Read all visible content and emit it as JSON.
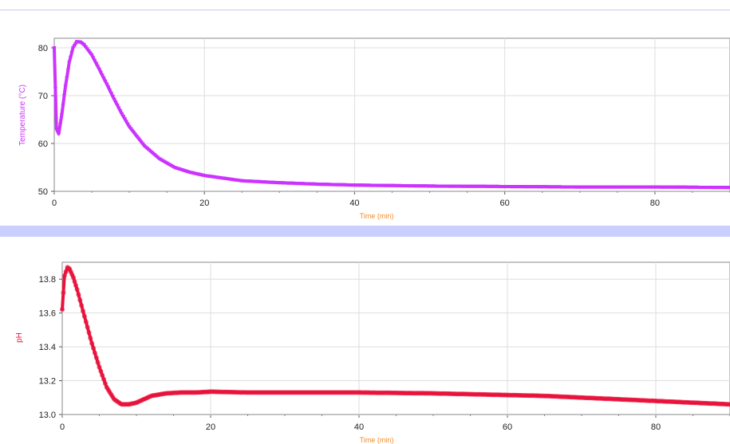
{
  "chart_data": [
    {
      "type": "line",
      "title": "",
      "xlabel": "Time (min)",
      "ylabel": "Temperature (°C)",
      "xlim": [
        0,
        90
      ],
      "ylim": [
        50,
        82
      ],
      "x_ticks": [
        "0",
        "20",
        "40",
        "60",
        "80"
      ],
      "y_ticks": [
        "50",
        "60",
        "70",
        "80"
      ],
      "grid": true,
      "legend": "none",
      "series": [
        {
          "color": "#cc33ff",
          "x": [
            0,
            0.3,
            0.6,
            1,
            1.5,
            2,
            2.5,
            3,
            3.5,
            4,
            5,
            6,
            7,
            8,
            9,
            10,
            12,
            14,
            16,
            18,
            20,
            25,
            30,
            35,
            40,
            50,
            60,
            70,
            80,
            90
          ],
          "y": [
            80,
            63,
            62,
            66,
            72,
            77,
            80,
            81.3,
            81.2,
            80.6,
            78.5,
            75.5,
            72.4,
            69.2,
            66.2,
            63.5,
            59.5,
            56.8,
            55,
            54,
            53.3,
            52.2,
            51.8,
            51.5,
            51.3,
            51.1,
            51,
            50.9,
            50.9,
            50.8
          ]
        }
      ]
    },
    {
      "type": "line",
      "title": "",
      "xlabel": "Time (min)",
      "ylabel": "pH",
      "xlim": [
        0,
        90
      ],
      "ylim": [
        13,
        13.9
      ],
      "x_ticks": [
        "0",
        "20",
        "40",
        "60",
        "80"
      ],
      "y_ticks": [
        "13.0",
        "13.2",
        "13.4",
        "13.6",
        "13.8"
      ],
      "grid": true,
      "legend": "none",
      "series": [
        {
          "color": "#e8133c",
          "x": [
            0,
            0.3,
            0.7,
            1,
            1.5,
            2,
            3,
            4,
            5,
            6,
            7,
            8,
            9,
            10,
            11,
            12,
            14,
            16,
            18,
            20,
            25,
            30,
            40,
            50,
            55,
            60,
            65,
            70,
            75,
            80,
            85,
            90
          ],
          "y": [
            13.62,
            13.82,
            13.87,
            13.86,
            13.81,
            13.74,
            13.58,
            13.42,
            13.28,
            13.16,
            13.09,
            13.06,
            13.06,
            13.07,
            13.09,
            13.11,
            13.125,
            13.13,
            13.13,
            13.135,
            13.13,
            13.13,
            13.13,
            13.125,
            13.12,
            13.115,
            13.11,
            13.1,
            13.09,
            13.08,
            13.07,
            13.06
          ]
        }
      ]
    }
  ]
}
